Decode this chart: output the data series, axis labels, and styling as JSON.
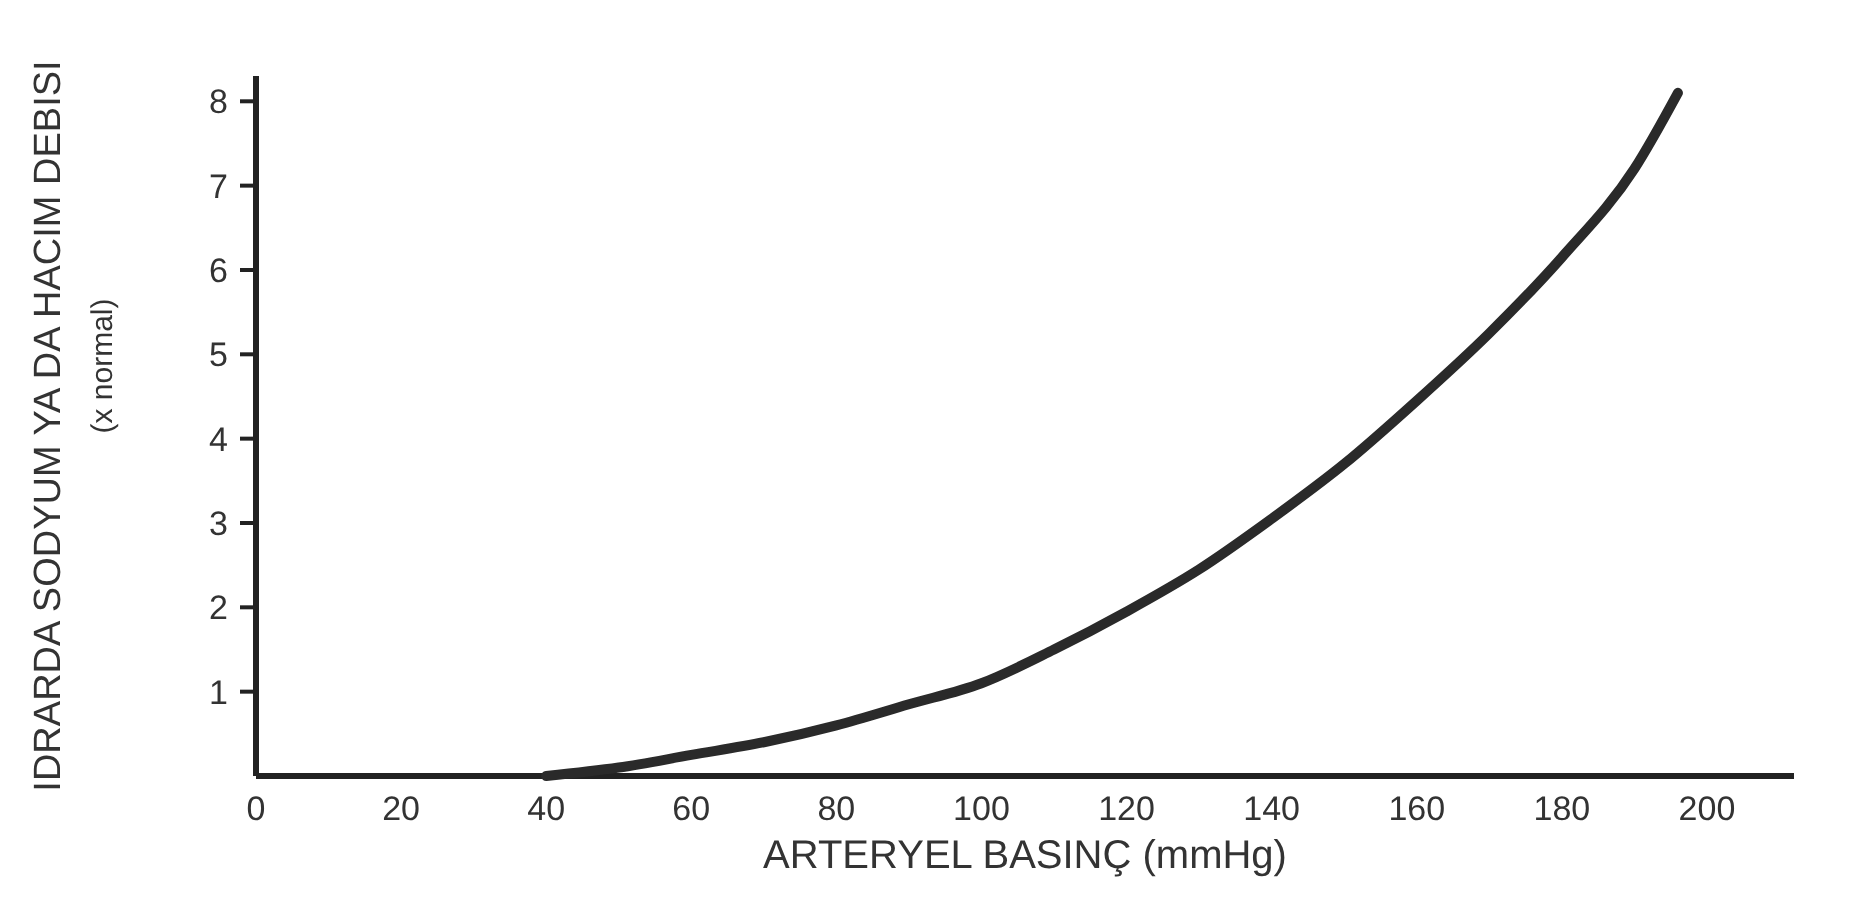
{
  "chart_data": {
    "type": "line",
    "xlabel": "ARTERYEL BASINÇ (mmHg)",
    "ylabel": "IDRARDA SODYUM YA DA HACIM DEBISI\n(x normal)",
    "x": [
      40,
      50,
      60,
      70,
      80,
      90,
      100,
      110,
      120,
      130,
      140,
      150,
      160,
      170,
      180,
      190,
      196
    ],
    "series": [
      {
        "color": "#2a2a2a",
        "values": [
          0,
          0.1,
          0.25,
          0.4,
          0.6,
          0.85,
          1.1,
          1.5,
          1.95,
          2.45,
          3.05,
          3.7,
          4.45,
          5.25,
          6.15,
          7.2,
          8.1
        ]
      }
    ],
    "xlim": [
      0,
      212
    ],
    "ylim": [
      0,
      8.3
    ],
    "xticks": [
      0,
      20,
      40,
      60,
      80,
      100,
      120,
      140,
      160,
      180,
      200
    ],
    "yticks": [
      1,
      2,
      3,
      4,
      5,
      6,
      7,
      8
    ],
    "grid": false,
    "marker": "none",
    "line_style": "solid"
  }
}
